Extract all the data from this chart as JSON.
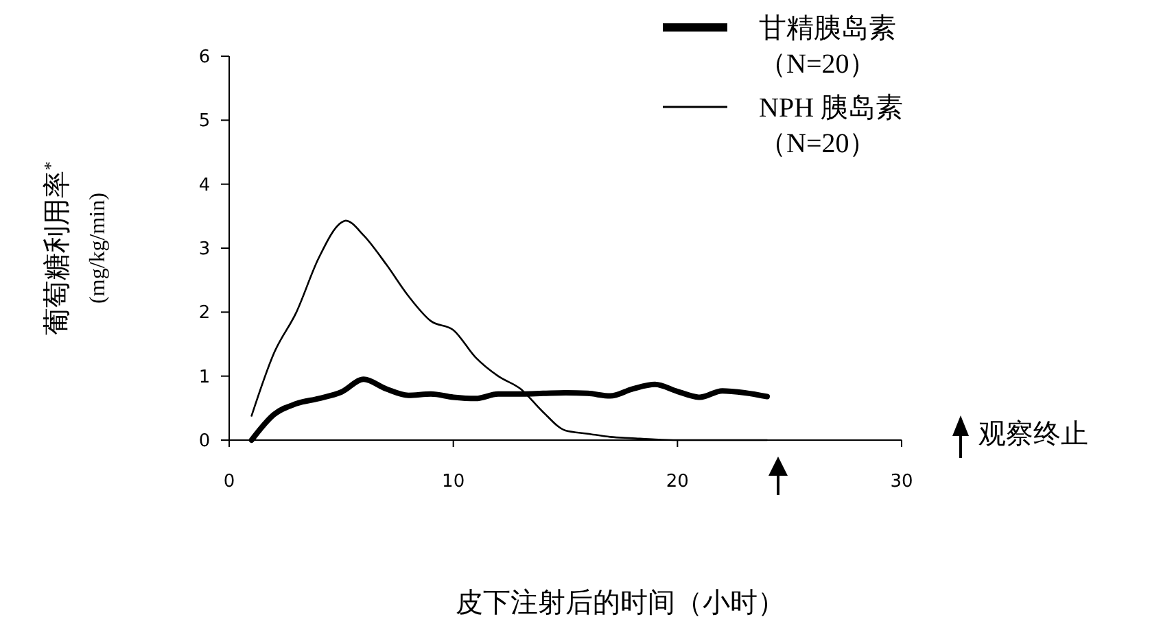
{
  "chart_data": {
    "type": "line",
    "xlabel": "皮下注射后的时间（小时）",
    "ylabel": "葡萄糖利用率$^{*}$\n(mg/kg/min)",
    "xlim": [
      0,
      30
    ],
    "xticks": [
      0,
      10,
      20,
      30
    ],
    "ylim": [
      0,
      6
    ],
    "yticks": [
      0,
      1,
      2,
      3,
      4,
      5,
      6
    ],
    "grid": false,
    "legend": "top right",
    "marker": "none",
    "line_style": "solid",
    "annotations": [
      "观察终止"
    ],
    "series": [
      {
        "name": "甘精胰岛素（N=20）",
        "color": "#000000",
        "x": [
          1,
          2,
          3,
          4,
          5,
          6,
          7,
          8,
          9,
          10,
          11,
          12,
          13,
          14,
          15,
          16,
          17,
          18,
          19,
          20,
          21,
          22,
          23,
          24
        ],
        "values": [
          0,
          0.4,
          0.57,
          0.65,
          0.75,
          0.95,
          0.8,
          0.7,
          0.72,
          0.67,
          0.65,
          0.72,
          0.72,
          0.73,
          0.74,
          0.73,
          0.69,
          0.8,
          0.87,
          0.76,
          0.67,
          0.77,
          0.74,
          0.68
        ]
      },
      {
        "name": "NPH 胰岛素（N=20）",
        "color": "#000000",
        "x": [
          1,
          2,
          3,
          4,
          5,
          5.2,
          6,
          7,
          8,
          9,
          10,
          11,
          12,
          13,
          14,
          15,
          16,
          17,
          18,
          19,
          20,
          21,
          22,
          23,
          24
        ],
        "values": [
          0.38,
          1.36,
          2.0,
          2.85,
          3.4,
          3.43,
          3.2,
          2.75,
          2.25,
          1.86,
          1.72,
          1.29,
          1.0,
          0.8,
          0.44,
          0.15,
          0.1,
          0.05,
          0.03,
          0.01,
          0,
          0,
          0,
          0,
          0
        ]
      }
    ]
  }
}
